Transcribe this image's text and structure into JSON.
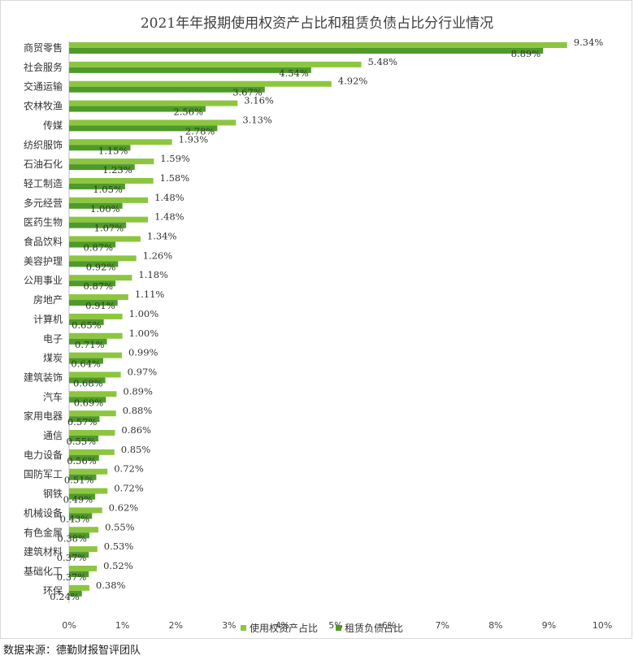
{
  "title": "2021年年报期使用权资产占比和租赁负债占比分行业情况",
  "source": "数据来源：德勤财报智评团队",
  "colors": {
    "series1": "#8cc63f",
    "series2": "#4e9a2a",
    "axis": "#bfbfbf"
  },
  "chart_data": {
    "type": "bar",
    "orientation": "horizontal",
    "categories": [
      "商贸零售",
      "社会服务",
      "交通运输",
      "农林牧渔",
      "传媒",
      "纺织服饰",
      "石油石化",
      "轻工制造",
      "多元经营",
      "医药生物",
      "食品饮料",
      "美容护理",
      "公用事业",
      "房地产",
      "计算机",
      "电子",
      "煤炭",
      "建筑装饰",
      "汽车",
      "家用电器",
      "通信",
      "电力设备",
      "国防军工",
      "钢铁",
      "机械设备",
      "有色金属",
      "建筑材料",
      "基础化工",
      "环保"
    ],
    "series": [
      {
        "name": "使用权资产占比",
        "values": [
          9.34,
          5.48,
          4.92,
          3.16,
          3.13,
          1.93,
          1.59,
          1.58,
          1.48,
          1.48,
          1.34,
          1.26,
          1.18,
          1.11,
          1.0,
          1.0,
          0.99,
          0.97,
          0.89,
          0.88,
          0.86,
          0.85,
          0.72,
          0.72,
          0.62,
          0.55,
          0.53,
          0.52,
          0.38
        ],
        "labels": [
          "9.34%",
          "5.48%",
          "4.92%",
          "3.16%",
          "3.13%",
          "1.93%",
          "1.59%",
          "1.58%",
          "1.48%",
          "1.48%",
          "1.34%",
          "1.26%",
          "1.18%",
          "1.11%",
          "1.00%",
          "1.00%",
          "0.99%",
          "0.97%",
          "0.89%",
          "0.88%",
          "0.86%",
          "0.85%",
          "0.72%",
          "0.72%",
          "0.62%",
          "0.55%",
          "0.53%",
          "0.52%",
          "0.38%"
        ]
      },
      {
        "name": "租赁负债占比",
        "values": [
          8.89,
          4.54,
          3.67,
          2.56,
          2.78,
          1.15,
          1.23,
          1.05,
          1.0,
          1.07,
          0.87,
          0.92,
          0.87,
          0.91,
          0.65,
          0.71,
          0.64,
          0.68,
          0.69,
          0.57,
          0.55,
          0.56,
          0.51,
          0.49,
          0.43,
          0.38,
          0.37,
          0.37,
          0.24
        ],
        "labels": [
          "8.89%",
          "4.54%",
          "3.67%",
          "2.56%",
          "2.78%",
          "1.15%",
          "1.23%",
          "1.05%",
          "1.00%",
          "1.07%",
          "0.87%",
          "0.92%",
          "0.87%",
          "0.91%",
          "0.65%",
          "0.71%",
          "0.64%",
          "0.68%",
          "0.69%",
          "0.57%",
          "0.55%",
          "0.56%",
          "0.51%",
          "0.49%",
          "0.43%",
          "0.38%",
          "0.37%",
          "0.37%",
          "0.24%"
        ]
      }
    ],
    "xlim": [
      0,
      10
    ],
    "xticks": [
      "0%",
      "1%",
      "2%",
      "3%",
      "4%",
      "5%",
      "6%",
      "7%",
      "8%",
      "9%",
      "10%"
    ],
    "grid": false,
    "legend": "bottom"
  }
}
